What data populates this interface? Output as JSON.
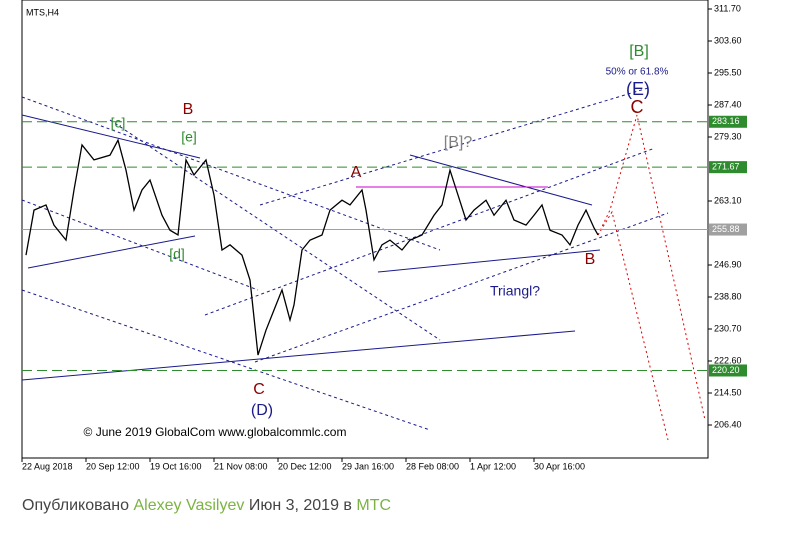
{
  "chart_data": {
    "type": "line",
    "title": "MTS,H4",
    "x": [
      1,
      3,
      6,
      8,
      11,
      13,
      15,
      18,
      22,
      24,
      26,
      28,
      30,
      32,
      35,
      37,
      39,
      41,
      43,
      46,
      48,
      50,
      52,
      55,
      57,
      59,
      61,
      63,
      65,
      67,
      68,
      70,
      72,
      75,
      77,
      80,
      82,
      85,
      86,
      88,
      90,
      92,
      95,
      97,
      100,
      103,
      105,
      107,
      109,
      111,
      113,
      116,
      118,
      121,
      123,
      126,
      128,
      130,
      132,
      135,
      137,
      139,
      141,
      143,
      144
    ],
    "series": [
      {
        "name": "MTS",
        "color": "#000000",
        "values": [
          249.4,
          260.8,
          262.1,
          257.0,
          253.2,
          265.9,
          277.3,
          273.5,
          274.7,
          278.5,
          270.9,
          260.8,
          265.9,
          268.4,
          259.5,
          255.7,
          254.5,
          273.5,
          269.7,
          273.5,
          264.6,
          250.7,
          252.0,
          249.4,
          243.1,
          224.1,
          230.4,
          235.5,
          240.6,
          233.0,
          236.8,
          250.7,
          253.2,
          254.5,
          260.8,
          263.3,
          262.1,
          265.9,
          260.8,
          248.2,
          252.0,
          253.2,
          250.7,
          253.2,
          254.5,
          259.5,
          262.1,
          270.9,
          264.6,
          258.3,
          260.8,
          263.3,
          259.5,
          263.3,
          258.3,
          257.0,
          259.5,
          262.1,
          255.7,
          254.5,
          252.0,
          257.0,
          260.8,
          256.3,
          254.5
        ]
      }
    ],
    "xlim": [
      0,
      171.5
    ],
    "xticks": [
      {
        "value": 0,
        "label": "22 Aug 2018"
      },
      {
        "value": 16,
        "label": "20 Sep 12:00"
      },
      {
        "value": 32,
        "label": "19 Oct 16:00"
      },
      {
        "value": 48,
        "label": "21 Nov 08:00"
      },
      {
        "value": 64,
        "label": "20 Dec 12:00"
      },
      {
        "value": 80,
        "label": "29 Jan 16:00"
      },
      {
        "value": 96,
        "label": "28 Feb 08:00"
      },
      {
        "value": 112,
        "label": "1 Apr 12:00"
      },
      {
        "value": 128,
        "label": "30 Apr 16:00"
      }
    ],
    "ylim": [
      198.05,
      313.98
    ],
    "yticks": [
      {
        "value": 311.7,
        "label": "311.70"
      },
      {
        "value": 303.6,
        "label": "303.60"
      },
      {
        "value": 295.5,
        "label": "295.50"
      },
      {
        "value": 287.4,
        "label": "287.40"
      },
      {
        "value": 279.3,
        "label": "279.30"
      },
      {
        "value": 263.1,
        "label": "263.10"
      },
      {
        "value": 246.9,
        "label": "246.90"
      },
      {
        "value": 238.8,
        "label": "238.80"
      },
      {
        "value": 230.7,
        "label": "230.70"
      },
      {
        "value": 222.6,
        "label": "222.60"
      },
      {
        "value": 214.5,
        "label": "214.50"
      },
      {
        "value": 206.4,
        "label": "206.40"
      }
    ],
    "levels": [
      283.16,
      271.67,
      {
        "value": 220.2,
        "label": "220.20"
      }
    ],
    "level_color": "#2e8b2e",
    "current_price": 255.88,
    "current_color": "#a0a0a0",
    "annotations": [
      {
        "text": "B",
        "color": "#8b0000"
      },
      {
        "text": "[c]",
        "color": "#2e8b2e"
      },
      {
        "text": "[e]",
        "color": "#2e8b2e"
      },
      {
        "text": "[d]",
        "color": "#2e8b2e"
      },
      {
        "text": "A",
        "color": "#8b0000"
      },
      {
        "text": "[B]?",
        "color": "#808080"
      },
      {
        "text": "B",
        "color": "#8b0000"
      },
      {
        "text": "C",
        "color": "#8b0000"
      },
      {
        "text": "(D)",
        "color": "#1a1a8c"
      },
      {
        "text": "Triangl?",
        "color": "#1a1a8c"
      },
      {
        "text": "[B]",
        "color": "#2e8b2e"
      },
      {
        "text": "50% or 61.8%",
        "color": "#1a1a8c"
      },
      {
        "text": "(E)",
        "color": "#1a1a8c"
      },
      {
        "text": "C",
        "color": "#8b0000"
      },
      {
        "text": "© June 2019 GlobalCom www.globalcommlc.com",
        "color": "#000000"
      }
    ]
  },
  "caption": {
    "prefix": "Опубликовано",
    "author": "Alexey Vasilyev",
    "date": "Июн 3, 2019 в",
    "ticker": "МТС"
  }
}
